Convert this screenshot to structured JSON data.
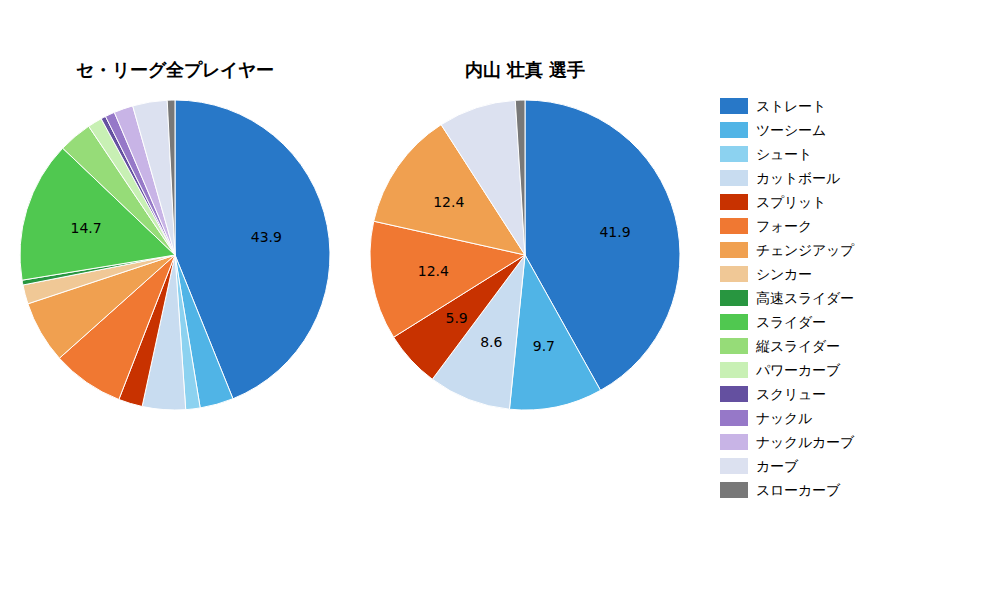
{
  "chart_data": [
    {
      "type": "pie",
      "title": "セ・リーグ全プレイヤー",
      "categories": [
        "ストレート",
        "ツーシーム",
        "シュート",
        "カットボール",
        "スプリット",
        "フォーク",
        "チェンジアップ",
        "シンカー",
        "高速スライダー",
        "スライダー",
        "縦スライダー",
        "パワーカーブ",
        "スクリュー",
        "ナックル",
        "ナックルカーブ",
        "カーブ",
        "スローカーブ"
      ],
      "values": [
        43.9,
        3.5,
        1.5,
        4.5,
        2.5,
        7.5,
        6.5,
        2.0,
        0.5,
        14.7,
        3.5,
        1.5,
        0.5,
        1.0,
        2.0,
        3.6,
        0.8
      ],
      "value_labels": [
        "43.9",
        null,
        null,
        null,
        null,
        null,
        null,
        null,
        null,
        "14.7",
        null,
        null,
        null,
        null,
        null,
        null,
        null
      ],
      "colors": [
        "#2878C8",
        "#50B4E6",
        "#8CD2F0",
        "#C8DCF0",
        "#C83200",
        "#F07832",
        "#F0A050",
        "#F0C896",
        "#289640",
        "#50C850",
        "#96DC78",
        "#C8F0B4",
        "#6450A0",
        "#9678C8",
        "#C8B4E6",
        "#DCE1F0",
        "#787878"
      ],
      "data_labels": true,
      "legend": "right"
    },
    {
      "type": "pie",
      "title": "内山 壮真  選手",
      "categories": [
        "ストレート",
        "ツーシーム",
        "カットボール",
        "スプリット",
        "フォーク",
        "チェンジアップ",
        "カーブ",
        "スローカーブ"
      ],
      "values": [
        41.9,
        9.7,
        8.6,
        5.9,
        12.4,
        12.4,
        8.1,
        1.0
      ],
      "value_labels": [
        "41.9",
        "9.7",
        "8.6",
        "5.9",
        "12.4",
        "12.4",
        null,
        null
      ],
      "colors": [
        "#2878C8",
        "#50B4E6",
        "#C8DCF0",
        "#C83200",
        "#F07832",
        "#F0A050",
        "#DCE1F0",
        "#787878"
      ],
      "data_labels": true
    }
  ]
}
